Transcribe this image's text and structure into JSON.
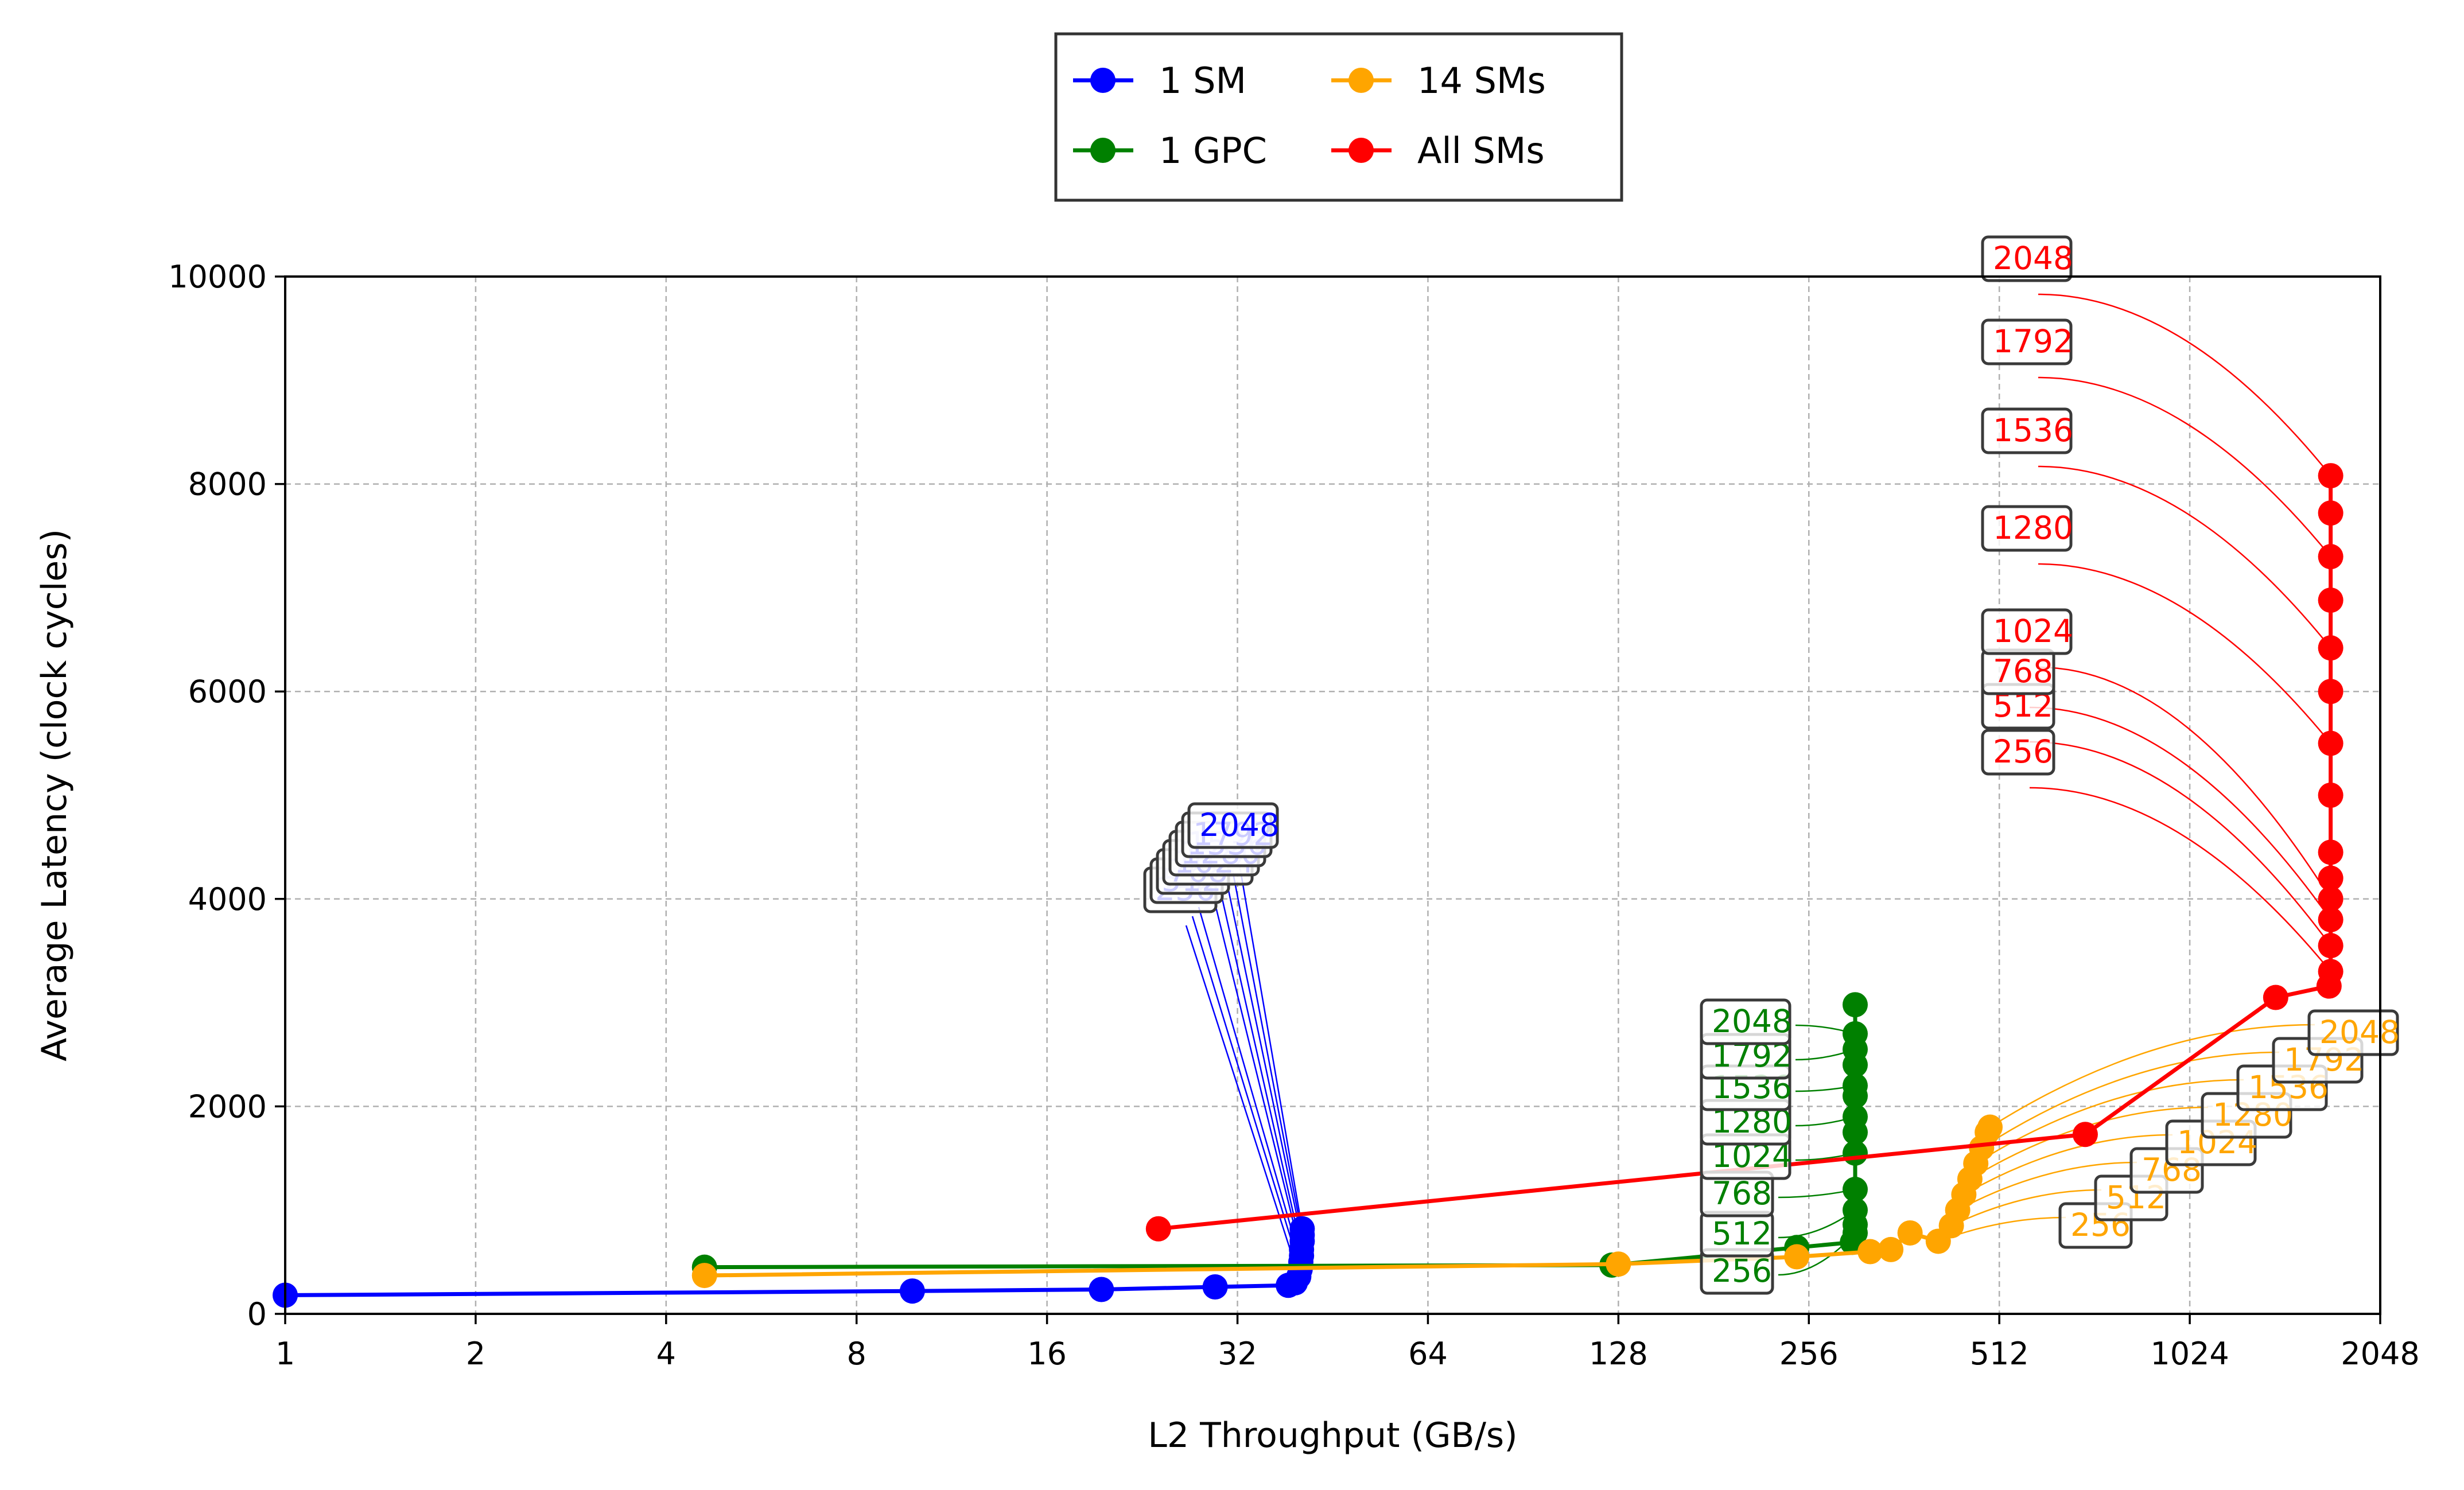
{
  "chart_data": {
    "type": "line",
    "title": "",
    "xlabel": "L2 Throughput (GB/s)",
    "ylabel": "Average Latency (clock cycles)",
    "xscale": "log2",
    "xlim": [
      1,
      2048
    ],
    "ylim": [
      0,
      10000
    ],
    "xticks": [
      1,
      2,
      4,
      8,
      16,
      32,
      64,
      128,
      256,
      512,
      1024,
      2048
    ],
    "xtick_labels": [
      "1",
      "2",
      "4",
      "8",
      "16",
      "32",
      "64",
      "128",
      "256",
      "512",
      "1024",
      "2048"
    ],
    "yticks": [
      0,
      2000,
      4000,
      6000,
      8000,
      10000
    ],
    "ytick_labels": [
      "0",
      "2000",
      "4000",
      "6000",
      "8000",
      "10000"
    ],
    "grid": true,
    "legend_position": "top-center",
    "series": [
      {
        "name": "1 SM",
        "color": "#0000ff",
        "points": [
          [
            1,
            180
          ],
          [
            9.8,
            220
          ],
          [
            19.5,
            235
          ],
          [
            29.5,
            260
          ],
          [
            38.5,
            275
          ],
          [
            39.5,
            300
          ],
          [
            40.0,
            360
          ],
          [
            40.2,
            430
          ],
          [
            40.3,
            500
          ],
          [
            40.4,
            560
          ],
          [
            40.4,
            620
          ],
          [
            40.5,
            700
          ],
          [
            40.5,
            760
          ],
          [
            40.5,
            820
          ]
        ],
        "annotations": [
          {
            "label": "256",
            "x": 40.0,
            "y": 360
          },
          {
            "label": "512",
            "x": 40.2,
            "y": 430
          },
          {
            "label": "768",
            "x": 40.3,
            "y": 500
          },
          {
            "label": "1024",
            "x": 40.4,
            "y": 560
          },
          {
            "label": "1280",
            "x": 40.4,
            "y": 620
          },
          {
            "label": "1536",
            "x": 40.5,
            "y": 700
          },
          {
            "label": "1792",
            "x": 40.5,
            "y": 760
          },
          {
            "label": "2048",
            "x": 40.5,
            "y": 820
          }
        ]
      },
      {
        "name": "1 GPC",
        "color": "#008000",
        "points": [
          [
            4.6,
            450
          ],
          [
            125,
            470
          ],
          [
            245,
            640
          ],
          [
            300,
            690
          ],
          [
            303,
            780
          ],
          [
            303,
            860
          ],
          [
            303,
            1000
          ],
          [
            303,
            1200
          ],
          [
            303,
            1550
          ],
          [
            303,
            1750
          ],
          [
            303,
            1900
          ],
          [
            303,
            2100
          ],
          [
            303,
            2200
          ],
          [
            303,
            2400
          ],
          [
            303,
            2550
          ],
          [
            303,
            2700
          ],
          [
            303,
            2980
          ]
        ],
        "annotations": [
          {
            "label": "256",
            "x": 303,
            "y": 780
          },
          {
            "label": "512",
            "x": 303,
            "y": 1000
          },
          {
            "label": "768",
            "x": 303,
            "y": 1200
          },
          {
            "label": "1024",
            "x": 303,
            "y": 1550
          },
          {
            "label": "1280",
            "x": 303,
            "y": 1900
          },
          {
            "label": "1536",
            "x": 303,
            "y": 2200
          },
          {
            "label": "1792",
            "x": 303,
            "y": 2550
          },
          {
            "label": "2048",
            "x": 303,
            "y": 2700
          }
        ]
      },
      {
        "name": "14 SMs",
        "color": "#ffa500",
        "points": [
          [
            4.6,
            370
          ],
          [
            128,
            480
          ],
          [
            245,
            550
          ],
          [
            320,
            600
          ],
          [
            345,
            620
          ],
          [
            370,
            780
          ],
          [
            410,
            700
          ],
          [
            430,
            850
          ],
          [
            440,
            1000
          ],
          [
            450,
            1150
          ],
          [
            460,
            1300
          ],
          [
            470,
            1450
          ],
          [
            480,
            1600
          ],
          [
            490,
            1750
          ],
          [
            495,
            1800
          ]
        ],
        "annotations": [
          {
            "label": "256",
            "x": 410,
            "y": 700
          },
          {
            "label": "512",
            "x": 430,
            "y": 850
          },
          {
            "label": "768",
            "x": 440,
            "y": 1000
          },
          {
            "label": "1024",
            "x": 450,
            "y": 1150
          },
          {
            "label": "1280",
            "x": 460,
            "y": 1300
          },
          {
            "label": "1536",
            "x": 470,
            "y": 1450
          },
          {
            "label": "1792",
            "x": 480,
            "y": 1600
          },
          {
            "label": "2048",
            "x": 495,
            "y": 1800
          }
        ]
      },
      {
        "name": "All SMs",
        "color": "#ff0000",
        "points": [
          [
            24,
            820
          ],
          [
            700,
            1730
          ],
          [
            1400,
            3050
          ],
          [
            1700,
            3160
          ],
          [
            1710,
            3300
          ],
          [
            1710,
            3550
          ],
          [
            1710,
            3800
          ],
          [
            1710,
            4000
          ],
          [
            1710,
            4200
          ],
          [
            1710,
            4450
          ],
          [
            1710,
            5000
          ],
          [
            1710,
            5500
          ],
          [
            1710,
            6000
          ],
          [
            1710,
            6420
          ],
          [
            1710,
            6880
          ],
          [
            1710,
            7300
          ],
          [
            1710,
            7720
          ],
          [
            1710,
            8080
          ]
        ],
        "annotations": [
          {
            "label": "256",
            "x": 1710,
            "y": 3300
          },
          {
            "label": "512",
            "x": 1710,
            "y": 3550
          },
          {
            "label": "768",
            "x": 1710,
            "y": 3800
          },
          {
            "label": "1024",
            "x": 1710,
            "y": 4000
          },
          {
            "label": "1280",
            "x": 1710,
            "y": 5500
          },
          {
            "label": "1536",
            "x": 1710,
            "y": 6420
          },
          {
            "label": "1792",
            "x": 1710,
            "y": 7300
          },
          {
            "label": "2048",
            "x": 1710,
            "y": 8080
          }
        ]
      }
    ]
  }
}
